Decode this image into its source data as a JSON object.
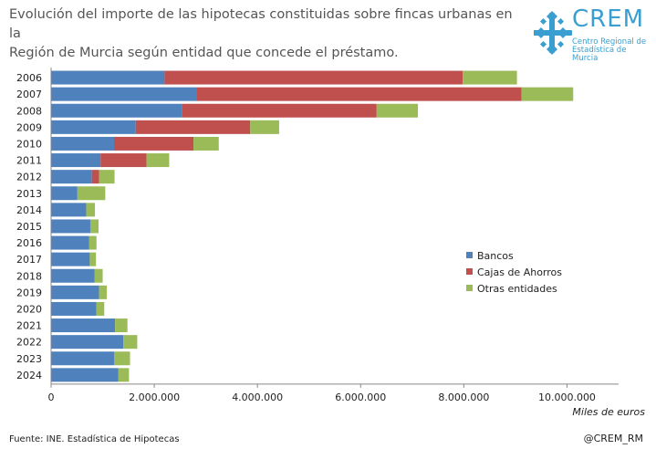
{
  "header": {
    "title_line1": "Evolución del importe de las hipotecas constituidas sobre fincas urbanas en la",
    "title_line2": "Región de Murcia según entidad que concede el préstamo."
  },
  "logo": {
    "name": "CREM",
    "subtitle_line1": "Centro Regional de",
    "subtitle_line2": "Estadística de Murcia",
    "color": "#3a9fd0"
  },
  "footer": {
    "source": "Fuente: INE. Estadística de Hipotecas",
    "handle": "@CREM_RM"
  },
  "chart_data": {
    "type": "bar",
    "orientation": "horizontal",
    "stacked": true,
    "categories": [
      "2006",
      "2007",
      "2008",
      "2009",
      "2010",
      "2011",
      "2012",
      "2013",
      "2014",
      "2015",
      "2016",
      "2017",
      "2018",
      "2019",
      "2020",
      "2021",
      "2022",
      "2023",
      "2024"
    ],
    "series": [
      {
        "name": "Bancos",
        "color": "#4f81bd",
        "values": [
          2200000,
          2820000,
          2540000,
          1640000,
          1220000,
          960000,
          790000,
          510000,
          680000,
          760000,
          740000,
          750000,
          840000,
          930000,
          880000,
          1240000,
          1400000,
          1220000,
          1300000
        ]
      },
      {
        "name": "Cajas de Ahorros",
        "color": "#c0504d",
        "values": [
          5780000,
          6300000,
          3770000,
          2220000,
          1540000,
          890000,
          140000,
          0,
          0,
          0,
          0,
          0,
          0,
          0,
          0,
          0,
          0,
          0,
          0
        ]
      },
      {
        "name": "Otras entidades",
        "color": "#9bbb59",
        "values": [
          1050000,
          1000000,
          800000,
          560000,
          490000,
          440000,
          300000,
          540000,
          170000,
          160000,
          140000,
          120000,
          160000,
          150000,
          150000,
          240000,
          270000,
          310000,
          210000
        ]
      }
    ],
    "xlim": [
      0,
      11000000
    ],
    "xticks": [
      0,
      2000000,
      4000000,
      6000000,
      8000000,
      10000000
    ],
    "xtick_labels": [
      "0",
      "2.000.000",
      "4.000.000",
      "6.000.000",
      "8.000.000",
      "10.000.000"
    ],
    "xlabel": "Miles de euros",
    "legend": "right",
    "grid": false
  }
}
